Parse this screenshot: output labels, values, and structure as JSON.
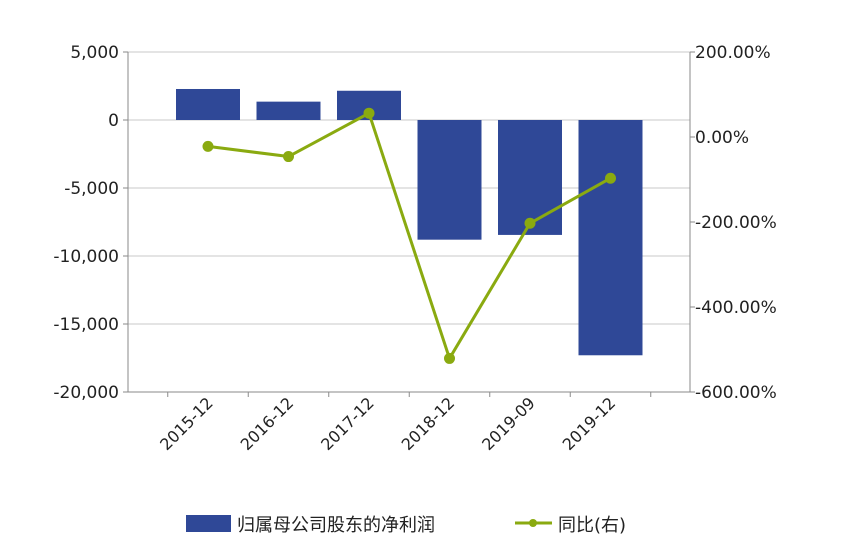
{
  "chart_data": {
    "type": "bar",
    "categories": [
      "2015-12",
      "2016-12",
      "2017-12",
      "2018-12",
      "2019-09",
      "2019-12"
    ],
    "series": [
      {
        "name": "归属母公司股东的净利润",
        "type": "bar",
        "axis": "left",
        "values": [
          2280,
          1350,
          2150,
          -8800,
          -8450,
          -17300
        ]
      },
      {
        "name": "同比(右)",
        "type": "line",
        "axis": "right",
        "values": [
          -22,
          -46,
          56,
          -521,
          -203,
          -97
        ]
      }
    ],
    "y_left": {
      "min": -20000,
      "max": 5000,
      "ticks": [
        5000,
        0,
        -5000,
        -10000,
        -15000,
        -20000
      ],
      "tick_labels": [
        "5,000",
        "0",
        "-5,000",
        "-10,000",
        "-15,000",
        "-20,000"
      ]
    },
    "y_right": {
      "min": -600,
      "max": 200,
      "unit": "%",
      "ticks": [
        200,
        0,
        -200,
        -400,
        -600
      ],
      "tick_labels": [
        "200.00%",
        "0.00%",
        "-200.00%",
        "-400.00%",
        "-600.00%"
      ]
    },
    "grid": true,
    "legend_position": "bottom",
    "colors": {
      "bar": "#2f4897",
      "line": "#8aaa10",
      "grid": "#c8c8c8",
      "axis": "#8a8a8a"
    }
  }
}
